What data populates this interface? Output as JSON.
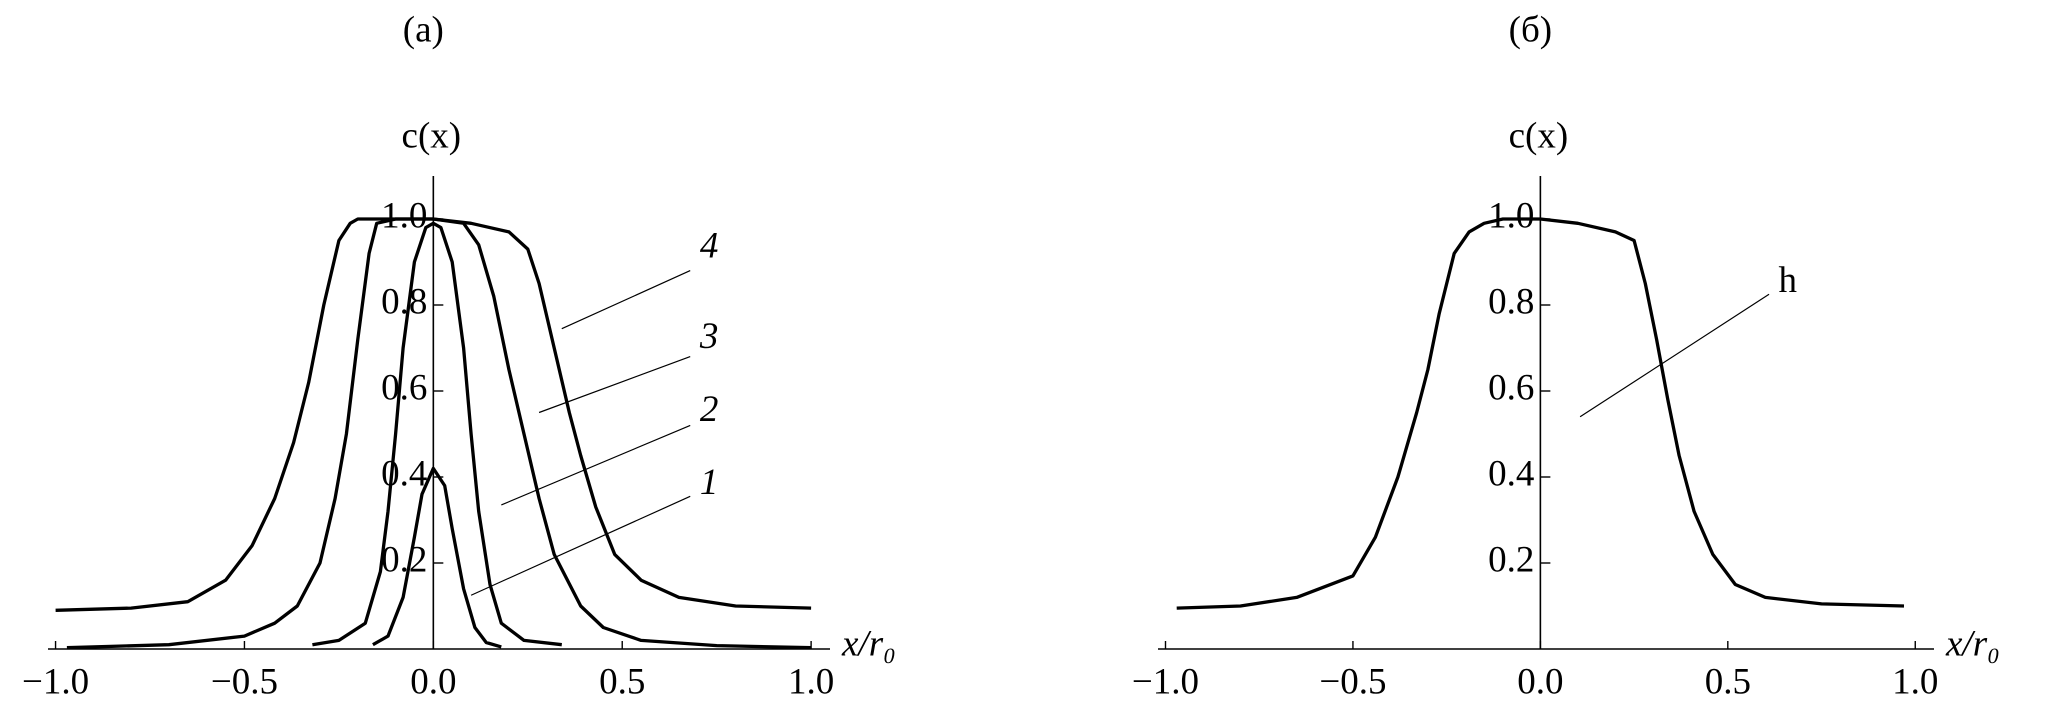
{
  "chart_data": [
    {
      "type": "line",
      "title": "(а)",
      "ylabel": "c(x)",
      "xlabel": "x/r₀",
      "xlim": [
        -1.02,
        1.05
      ],
      "ylim": [
        0,
        1.1
      ],
      "xticks": [
        {
          "value": -1.0,
          "label": "−1.0"
        },
        {
          "value": -0.5,
          "label": "−0.5"
        },
        {
          "value": 0,
          "label": "0.0"
        },
        0.5,
        {
          "value": 1.0,
          "label": "1.0"
        }
      ],
      "yticks": [
        0.2,
        0.4,
        0.6,
        0.8,
        {
          "value": 1.0,
          "label": "1.0"
        }
      ],
      "series": [
        {
          "name": "1",
          "color": "#000000",
          "x": [
            -0.16,
            -0.12,
            -0.08,
            -0.05,
            -0.03,
            0,
            0.03,
            0.05,
            0.08,
            0.11,
            0.14,
            0.18
          ],
          "values": [
            0.01,
            0.03,
            0.12,
            0.26,
            0.36,
            0.42,
            0.38,
            0.28,
            0.14,
            0.05,
            0.015,
            0.005
          ]
        },
        {
          "name": "2",
          "color": "#000000",
          "x": [
            -0.32,
            -0.25,
            -0.18,
            -0.14,
            -0.12,
            -0.1,
            -0.08,
            -0.05,
            -0.02,
            0,
            0.02,
            0.05,
            0.08,
            0.1,
            0.12,
            0.15,
            0.18,
            0.24,
            0.34
          ],
          "values": [
            0.01,
            0.02,
            0.06,
            0.18,
            0.32,
            0.5,
            0.7,
            0.9,
            0.98,
            0.99,
            0.98,
            0.9,
            0.7,
            0.5,
            0.32,
            0.15,
            0.06,
            0.02,
            0.01
          ]
        },
        {
          "name": "3",
          "color": "#000000",
          "x": [
            -0.97,
            -0.7,
            -0.5,
            -0.42,
            -0.36,
            -0.3,
            -0.26,
            -0.23,
            -0.2,
            -0.17,
            -0.15,
            -0.1,
            0,
            0.08,
            0.12,
            0.16,
            0.2,
            0.24,
            0.28,
            0.32,
            0.39,
            0.45,
            0.55,
            0.75,
            1.0
          ],
          "values": [
            0.003,
            0.01,
            0.03,
            0.06,
            0.1,
            0.2,
            0.35,
            0.5,
            0.72,
            0.92,
            0.99,
            1.0,
            1.0,
            0.99,
            0.94,
            0.82,
            0.65,
            0.5,
            0.35,
            0.22,
            0.1,
            0.05,
            0.02,
            0.008,
            0.003
          ]
        },
        {
          "name": "4",
          "color": "#000000",
          "x": [
            -1.0,
            -0.8,
            -0.65,
            -0.55,
            -0.48,
            -0.42,
            -0.37,
            -0.33,
            -0.29,
            -0.25,
            -0.22,
            -0.2,
            -0.1,
            0,
            0.1,
            0.2,
            0.25,
            0.28,
            0.32,
            0.36,
            0.39,
            0.43,
            0.48,
            0.55,
            0.65,
            0.8,
            1.0
          ],
          "values": [
            0.09,
            0.095,
            0.11,
            0.16,
            0.24,
            0.35,
            0.48,
            0.62,
            0.8,
            0.95,
            0.99,
            1.0,
            1.0,
            1.0,
            0.99,
            0.97,
            0.93,
            0.85,
            0.7,
            0.55,
            0.45,
            0.33,
            0.22,
            0.16,
            0.12,
            0.1,
            0.095
          ]
        }
      ],
      "annotations": [
        {
          "text": "4"
        },
        {
          "text": "3"
        },
        {
          "text": "2"
        },
        {
          "text": "1"
        }
      ]
    },
    {
      "type": "line",
      "title": "(б)",
      "ylabel": "c(x)",
      "xlabel": "x/r₀",
      "xlim": [
        -1.02,
        1.05
      ],
      "ylim": [
        0,
        1.1
      ],
      "xticks": [
        {
          "value": -1.0,
          "label": "−1.0"
        },
        {
          "value": -0.5,
          "label": "−0.5"
        },
        {
          "value": 0,
          "label": "0.0"
        },
        0.5,
        {
          "value": 1.0,
          "label": "1.0"
        }
      ],
      "yticks": [
        0.2,
        0.4,
        0.6,
        0.8,
        {
          "value": 1.0,
          "label": "1.0"
        }
      ],
      "series": [
        {
          "name": "h",
          "color": "#000000",
          "x": [
            -0.97,
            -0.8,
            -0.65,
            -0.5,
            -0.44,
            -0.38,
            -0.33,
            -0.3,
            -0.27,
            -0.23,
            -0.19,
            -0.15,
            -0.1,
            0,
            0.1,
            0.2,
            0.25,
            0.28,
            0.31,
            0.34,
            0.37,
            0.41,
            0.46,
            0.52,
            0.6,
            0.75,
            0.97
          ],
          "values": [
            0.095,
            0.1,
            0.12,
            0.17,
            0.26,
            0.4,
            0.55,
            0.65,
            0.78,
            0.92,
            0.97,
            0.99,
            1.0,
            1.0,
            0.99,
            0.97,
            0.95,
            0.85,
            0.72,
            0.58,
            0.45,
            0.32,
            0.22,
            0.15,
            0.12,
            0.105,
            0.1
          ]
        }
      ],
      "annotations": [
        {
          "text": "h"
        }
      ]
    }
  ]
}
